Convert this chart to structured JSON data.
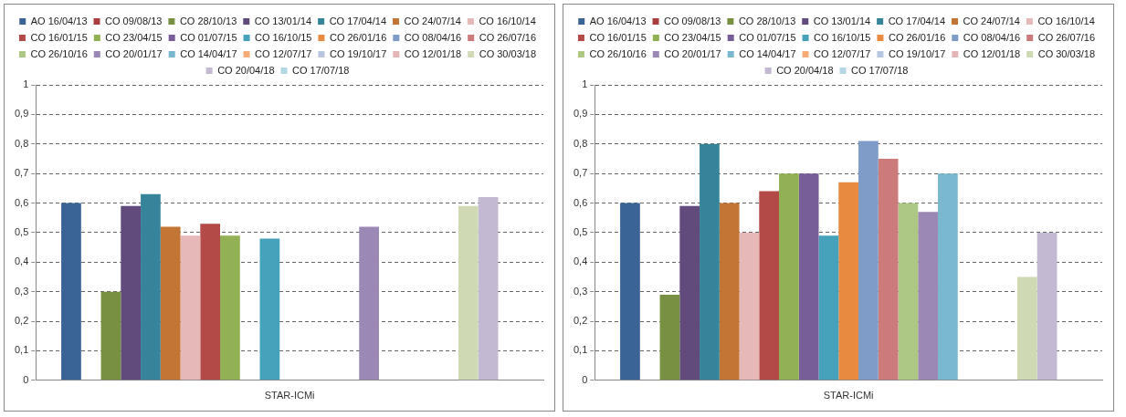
{
  "chart_data": [
    {
      "type": "bar",
      "categories": [
        "STAR-ICMi"
      ],
      "ylim": [
        0,
        1
      ],
      "yticks": [
        {
          "value": 0,
          "label": "0"
        },
        {
          "value": 0.1,
          "label": "0,1"
        },
        {
          "value": 0.2,
          "label": "0,2"
        },
        {
          "value": 0.3,
          "label": "0,3"
        },
        {
          "value": 0.4,
          "label": "0,4"
        },
        {
          "value": 0.5,
          "label": "0,5"
        },
        {
          "value": 0.6,
          "label": "0,6"
        },
        {
          "value": 0.7,
          "label": "0,7"
        },
        {
          "value": 0.8,
          "label": "0,8"
        },
        {
          "value": 0.9,
          "label": "0,9"
        },
        {
          "value": 1,
          "label": "1"
        }
      ],
      "grid": "y",
      "legend": "top",
      "series": [
        {
          "name": "AO 16/04/13",
          "color": "#3a6496",
          "values": [
            0.6
          ]
        },
        {
          "name": "CO 09/08/13",
          "color": "#a83f3c",
          "values": [
            null
          ]
        },
        {
          "name": "CO 28/10/13",
          "color": "#779042",
          "values": [
            0.3
          ]
        },
        {
          "name": "CO 13/01/14",
          "color": "#614a7c",
          "values": [
            0.59
          ]
        },
        {
          "name": "CO 17/04/14",
          "color": "#36849a",
          "values": [
            0.63
          ]
        },
        {
          "name": "CO 24/07/14",
          "color": "#c27535",
          "values": [
            0.52
          ]
        },
        {
          "name": "CO 16/10/14",
          "color": "#e6b8b7",
          "values": [
            0.49
          ]
        },
        {
          "name": "CO 16/01/15",
          "color": "#b34a47",
          "values": [
            0.53
          ]
        },
        {
          "name": "CO 23/04/15",
          "color": "#92b154",
          "values": [
            0.49
          ]
        },
        {
          "name": "CO 01/07/15",
          "color": "#775e98",
          "values": [
            null
          ]
        },
        {
          "name": "CO 16/10/15",
          "color": "#46a1bb",
          "values": [
            0.48
          ]
        },
        {
          "name": "CO 26/01/16",
          "color": "#e88a40",
          "values": [
            null
          ]
        },
        {
          "name": "CO 08/04/16",
          "color": "#7f9bc8",
          "values": [
            null
          ]
        },
        {
          "name": "CO 26/07/16",
          "color": "#cc7b7a",
          "values": [
            null
          ]
        },
        {
          "name": "CO 26/10/16",
          "color": "#adc784",
          "values": [
            null
          ]
        },
        {
          "name": "CO 20/01/17",
          "color": "#9b88b4",
          "values": [
            0.52
          ]
        },
        {
          "name": "CO 14/04/17",
          "color": "#7ab8cf",
          "values": [
            null
          ]
        },
        {
          "name": "CO 12/07/17",
          "color": "#f7ab78",
          "values": [
            null
          ]
        },
        {
          "name": "CO 19/10/17",
          "color": "#b6c5e0",
          "values": [
            null
          ]
        },
        {
          "name": "CO 12/01/18",
          "color": "#e3b6b5",
          "values": [
            null
          ]
        },
        {
          "name": "CO 30/03/18",
          "color": "#cfdab5",
          "values": [
            0.59
          ]
        },
        {
          "name": "CO 20/04/18",
          "color": "#c3b9d2",
          "values": [
            0.62
          ]
        },
        {
          "name": "CO 17/07/18",
          "color": "#b3d8e4",
          "values": [
            null
          ]
        }
      ]
    },
    {
      "type": "bar",
      "categories": [
        "STAR-ICMi"
      ],
      "ylim": [
        0,
        1
      ],
      "yticks": [
        {
          "value": 0,
          "label": "0"
        },
        {
          "value": 0.1,
          "label": "0,1"
        },
        {
          "value": 0.2,
          "label": "0,2"
        },
        {
          "value": 0.3,
          "label": "0,3"
        },
        {
          "value": 0.4,
          "label": "0,4"
        },
        {
          "value": 0.5,
          "label": "0,5"
        },
        {
          "value": 0.6,
          "label": "0,6"
        },
        {
          "value": 0.7,
          "label": "0,7"
        },
        {
          "value": 0.8,
          "label": "0,8"
        },
        {
          "value": 0.9,
          "label": "0,9"
        },
        {
          "value": 1,
          "label": "1"
        }
      ],
      "grid": "y",
      "legend": "top",
      "series": [
        {
          "name": "AO 16/04/13",
          "color": "#3a6496",
          "values": [
            0.6
          ]
        },
        {
          "name": "CO 09/08/13",
          "color": "#a83f3c",
          "values": [
            null
          ]
        },
        {
          "name": "CO 28/10/13",
          "color": "#779042",
          "values": [
            0.29
          ]
        },
        {
          "name": "CO 13/01/14",
          "color": "#614a7c",
          "values": [
            0.59
          ]
        },
        {
          "name": "CO 17/04/14",
          "color": "#36849a",
          "values": [
            0.8
          ]
        },
        {
          "name": "CO 24/07/14",
          "color": "#c27535",
          "values": [
            0.6
          ]
        },
        {
          "name": "CO 16/10/14",
          "color": "#e6b8b7",
          "values": [
            0.5
          ]
        },
        {
          "name": "CO 16/01/15",
          "color": "#b34a47",
          "values": [
            0.64
          ]
        },
        {
          "name": "CO 23/04/15",
          "color": "#92b154",
          "values": [
            0.7
          ]
        },
        {
          "name": "CO 01/07/15",
          "color": "#775e98",
          "values": [
            0.7
          ]
        },
        {
          "name": "CO 16/10/15",
          "color": "#46a1bb",
          "values": [
            0.49
          ]
        },
        {
          "name": "CO 26/01/16",
          "color": "#e88a40",
          "values": [
            0.67
          ]
        },
        {
          "name": "CO 08/04/16",
          "color": "#7f9bc8",
          "values": [
            0.81
          ]
        },
        {
          "name": "CO 26/07/16",
          "color": "#cc7b7a",
          "values": [
            0.75
          ]
        },
        {
          "name": "CO 26/10/16",
          "color": "#adc784",
          "values": [
            0.6
          ]
        },
        {
          "name": "CO 20/01/17",
          "color": "#9b88b4",
          "values": [
            0.57
          ]
        },
        {
          "name": "CO 14/04/17",
          "color": "#7ab8cf",
          "values": [
            0.7
          ]
        },
        {
          "name": "CO 12/07/17",
          "color": "#f7ab78",
          "values": [
            null
          ]
        },
        {
          "name": "CO 19/10/17",
          "color": "#b6c5e0",
          "values": [
            null
          ]
        },
        {
          "name": "CO 12/01/18",
          "color": "#e3b6b5",
          "values": [
            null
          ]
        },
        {
          "name": "CO 30/03/18",
          "color": "#cfdab5",
          "values": [
            0.35
          ]
        },
        {
          "name": "CO 20/04/18",
          "color": "#c3b9d2",
          "values": [
            0.5
          ]
        },
        {
          "name": "CO 17/07/18",
          "color": "#b3d8e4",
          "values": [
            null
          ]
        }
      ]
    }
  ]
}
